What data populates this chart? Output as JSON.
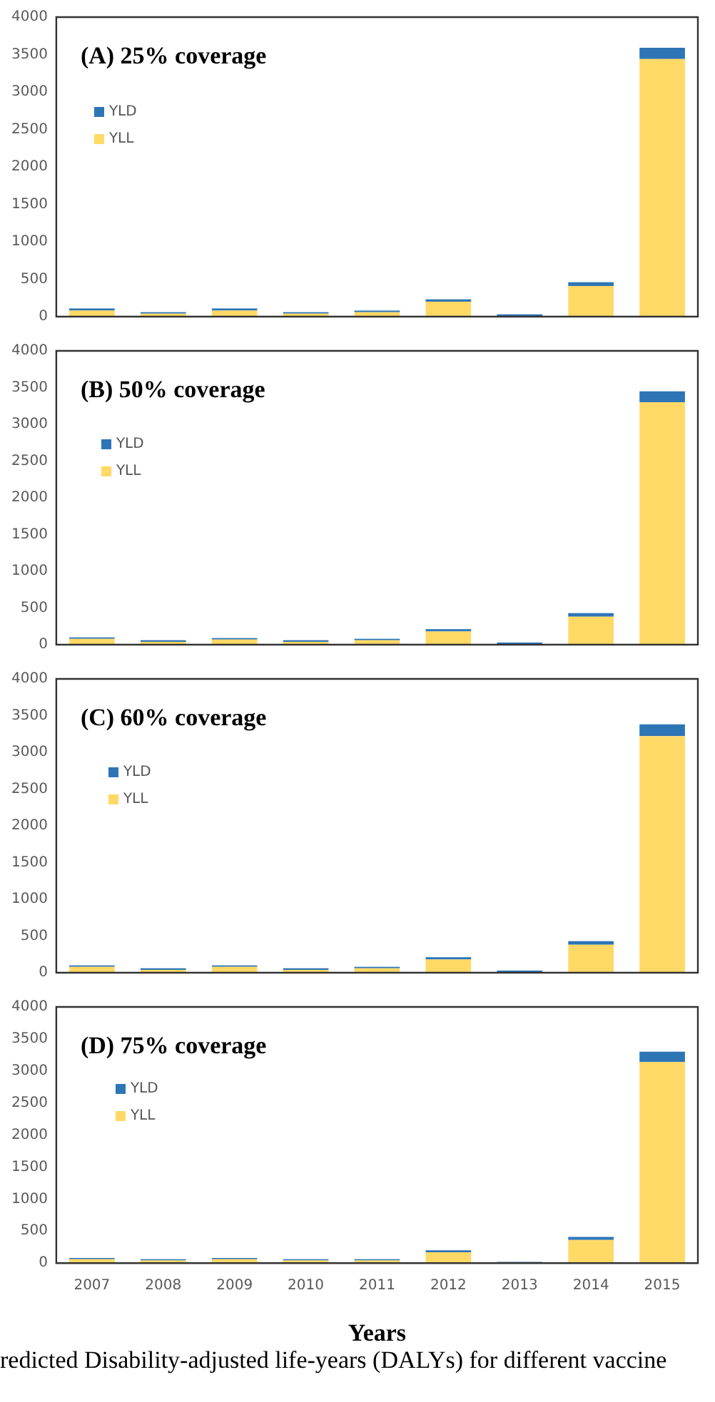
{
  "chart_data": [
    {
      "type": "bar",
      "title": "(A) 25% coverage",
      "stacked": true,
      "categories": [
        "2007",
        "2008",
        "2009",
        "2010",
        "2011",
        "2012",
        "2013",
        "2014",
        "2015"
      ],
      "ylim": [
        0,
        4000
      ],
      "yticks": [
        0,
        500,
        1000,
        1500,
        2000,
        2500,
        3000,
        3500,
        4000
      ],
      "legend": "top left",
      "grid": false,
      "tick_labels": "y",
      "series": [
        {
          "name": "YLL",
          "color": "#ffd966",
          "values": [
            80,
            40,
            80,
            40,
            60,
            200,
            null,
            410,
            3440
          ]
        },
        {
          "name": "YLD",
          "color": "#2e75b6",
          "values": [
            30,
            20,
            30,
            20,
            20,
            30,
            30,
            50,
            150
          ]
        }
      ]
    },
    {
      "type": "bar",
      "title": "(B) 50% coverage",
      "stacked": true,
      "categories": [
        "2007",
        "2008",
        "2009",
        "2010",
        "2011",
        "2012",
        "2013",
        "2014",
        "2015"
      ],
      "ylim": [
        0,
        4000
      ],
      "yticks": [
        0,
        500,
        1000,
        1500,
        2000,
        2500,
        3000,
        3500,
        4000
      ],
      "legend": "top left",
      "grid": false,
      "tick_labels": "y",
      "series": [
        {
          "name": "YLL",
          "color": "#ffd966",
          "values": [
            80,
            40,
            70,
            40,
            60,
            180,
            null,
            380,
            3300
          ]
        },
        {
          "name": "YLD",
          "color": "#2e75b6",
          "values": [
            20,
            20,
            20,
            20,
            20,
            30,
            30,
            50,
            150
          ]
        }
      ]
    },
    {
      "type": "bar",
      "title": "(C) 60% coverage",
      "stacked": true,
      "categories": [
        "2007",
        "2008",
        "2009",
        "2010",
        "2011",
        "2012",
        "2013",
        "2014",
        "2015"
      ],
      "ylim": [
        0,
        4000
      ],
      "yticks": [
        0,
        500,
        1000,
        1500,
        2000,
        2500,
        3000,
        3500,
        4000
      ],
      "legend": "top left",
      "grid": false,
      "tick_labels": "y",
      "series": [
        {
          "name": "YLL",
          "color": "#ffd966",
          "values": [
            80,
            40,
            80,
            40,
            60,
            180,
            null,
            380,
            3220
          ]
        },
        {
          "name": "YLD",
          "color": "#2e75b6",
          "values": [
            20,
            20,
            20,
            20,
            20,
            30,
            30,
            50,
            160
          ]
        }
      ]
    },
    {
      "type": "bar",
      "title": "(D) 75% coverage",
      "xlabel": "Years",
      "stacked": true,
      "categories": [
        "2007",
        "2008",
        "2009",
        "2010",
        "2011",
        "2012",
        "2013",
        "2014",
        "2015"
      ],
      "ylim": [
        0,
        4000
      ],
      "yticks": [
        0,
        500,
        1000,
        1500,
        2000,
        2500,
        3000,
        3500,
        4000
      ],
      "legend": "top left",
      "grid": false,
      "annotations": [
        "redicted Disability-adjusted life-years (DALYs) for different vaccine"
      ],
      "series": [
        {
          "name": "YLL",
          "color": "#ffd966",
          "values": [
            60,
            40,
            60,
            40,
            40,
            170,
            null,
            360,
            3140
          ]
        },
        {
          "name": "YLD",
          "color": "#2e75b6",
          "values": [
            20,
            20,
            20,
            20,
            20,
            30,
            20,
            50,
            160
          ]
        }
      ]
    }
  ]
}
